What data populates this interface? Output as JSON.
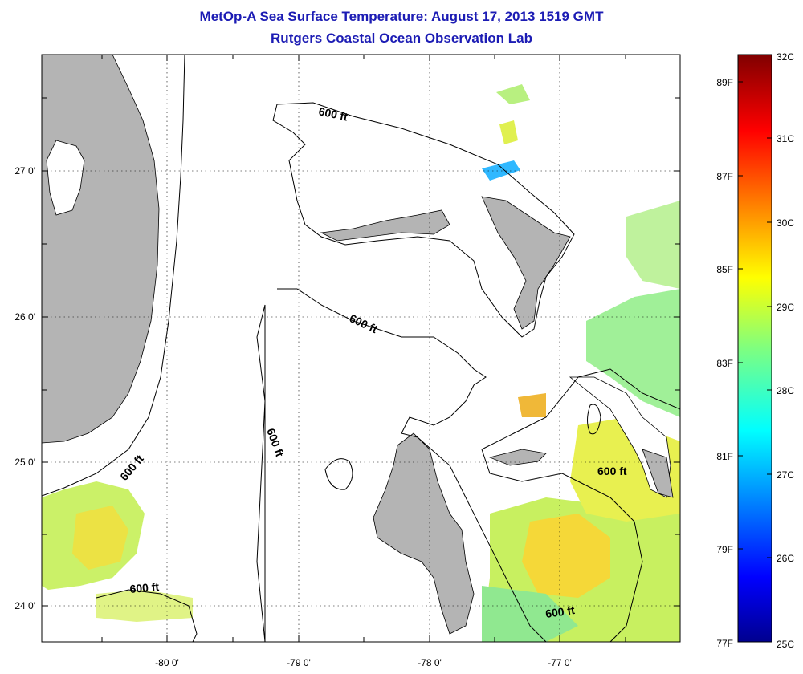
{
  "title": {
    "line1": "MetOp-A Sea Surface Temperature:  August 17, 2013 1519 GMT",
    "line2": "Rutgers Coastal Ocean Observation Lab"
  },
  "axes": {
    "x_ticks": [
      "-80 0'",
      "-79 0'",
      "-78 0'",
      "-77 0'"
    ],
    "y_ticks": [
      "27 0'",
      "26 0'",
      "25 0'",
      "24 0'"
    ]
  },
  "map": {
    "contour_labels": [
      "600 ft",
      "600 ft",
      "600 ft",
      "600 ft",
      "600 ft",
      "600 ft"
    ],
    "land_color": "#b4b4b4",
    "ocean_color": "#ffffff"
  },
  "colorbar": {
    "celsius_labels": [
      "32C",
      "31C",
      "30C",
      "29C",
      "28C",
      "27C",
      "26C",
      "25C"
    ],
    "fahrenheit_labels": [
      "89F",
      "87F",
      "85F",
      "83F",
      "81F",
      "79F",
      "77F"
    ],
    "range_c": [
      25,
      32
    ],
    "colormap": "jet"
  }
}
